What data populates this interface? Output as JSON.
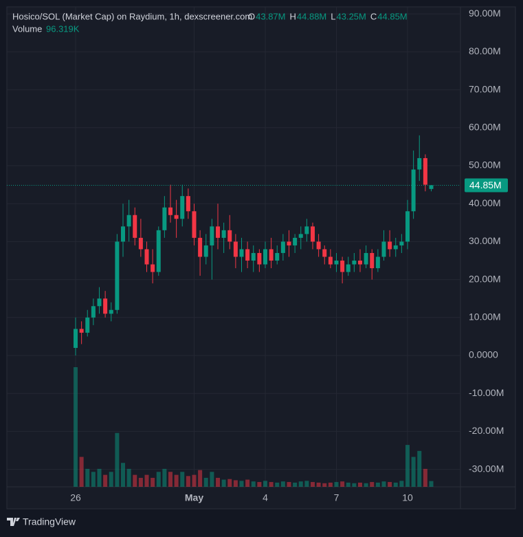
{
  "chart_data": {
    "type": "candlestick",
    "title": "Hosico/SOL (Market Cap) on Raydium, 1h, dexscreener.com",
    "ohlc_keys": [
      "O",
      "H",
      "L",
      "C"
    ],
    "ohlc_labels": [
      "43.87M",
      "44.88M",
      "43.25M",
      "44.85M"
    ],
    "volume_title": "Volume",
    "volume_label": "96.319K",
    "footer": "TradingView",
    "up_color": "#089981",
    "down_color": "#f23645",
    "grid": true,
    "ylim": [
      -34.6,
      91.85
    ],
    "yticks": [
      {
        "value": 90,
        "label": "90.00M"
      },
      {
        "value": 80,
        "label": "80.00M"
      },
      {
        "value": 70,
        "label": "70.00M"
      },
      {
        "value": 60,
        "label": "60.00M"
      },
      {
        "value": 50,
        "label": "50.00M"
      },
      {
        "value": 40,
        "label": "40.00M"
      },
      {
        "value": 30,
        "label": "30.00M"
      },
      {
        "value": 20,
        "label": "20.00M"
      },
      {
        "value": 10,
        "label": "10.00M"
      },
      {
        "value": 0,
        "label": "0.0000"
      },
      {
        "value": -10,
        "label": "-10.00M"
      },
      {
        "value": -20,
        "label": "-20.00M"
      },
      {
        "value": -30,
        "label": "-30.00M"
      }
    ],
    "xticks": [
      {
        "value": 0,
        "label": "26"
      },
      {
        "value": 20,
        "label": "May"
      },
      {
        "value": 32,
        "label": "4"
      },
      {
        "value": 44,
        "label": "7"
      },
      {
        "value": 56,
        "label": "10"
      }
    ],
    "last_price": {
      "value": 44.85,
      "label": "44.85M"
    },
    "open": [
      2,
      7,
      6,
      10,
      13,
      15,
      11,
      12,
      30,
      34,
      37,
      31,
      28,
      24,
      22,
      33,
      39,
      37,
      36,
      42,
      38,
      31,
      26,
      29,
      34,
      31,
      33,
      30,
      26,
      28,
      25,
      27,
      24,
      28,
      25,
      27,
      30,
      29,
      31,
      32,
      34,
      30,
      28,
      26,
      24,
      25,
      22,
      24,
      25,
      24,
      27,
      23,
      26,
      30,
      28,
      29,
      30,
      38,
      49,
      52,
      43.87
    ],
    "high": [
      10,
      9,
      12,
      15,
      18,
      17,
      14,
      32,
      40,
      41,
      39,
      36,
      30,
      28,
      34,
      42,
      45,
      41,
      45,
      44,
      40,
      33,
      32,
      36,
      40,
      35,
      37,
      32,
      31,
      30,
      29,
      28,
      30,
      31,
      29,
      32,
      33,
      32,
      34,
      36,
      35,
      32,
      29,
      28,
      27,
      26,
      26,
      27,
      28,
      29,
      28,
      28,
      33,
      33,
      31,
      32,
      41,
      54,
      58,
      53,
      44.88
    ],
    "low": [
      0,
      3,
      5,
      8,
      11,
      10,
      9,
      11,
      26,
      30,
      29,
      26,
      22,
      19,
      21,
      31,
      35,
      31,
      34,
      36,
      29,
      21,
      24,
      20,
      28,
      27,
      28,
      23,
      22,
      23,
      22,
      22,
      23,
      23,
      24,
      25,
      26,
      27,
      28,
      30,
      28,
      26,
      24,
      23,
      22,
      19,
      21,
      22,
      22,
      23,
      20,
      22,
      25,
      26,
      26,
      27,
      28,
      36,
      46,
      43.25,
      43.25
    ],
    "close": [
      7,
      6,
      10,
      13,
      15,
      11,
      12,
      30,
      34,
      37,
      31,
      28,
      24,
      22,
      33,
      39,
      37,
      36,
      42,
      38,
      31,
      26,
      29,
      34,
      31,
      33,
      30,
      26,
      28,
      25,
      27,
      24,
      28,
      25,
      27,
      30,
      29,
      31,
      32,
      34,
      30,
      28,
      26,
      24,
      25,
      22,
      24,
      25,
      24,
      27,
      23,
      26,
      30,
      28,
      29,
      30,
      38,
      49,
      52,
      45,
      44.85
    ],
    "volume": [
      2000,
      500,
      300,
      250,
      300,
      200,
      250,
      900,
      400,
      300,
      200,
      150,
      200,
      150,
      250,
      300,
      250,
      200,
      250,
      180,
      200,
      280,
      150,
      250,
      150,
      120,
      130,
      110,
      100,
      120,
      90,
      80,
      100,
      80,
      70,
      90,
      80,
      70,
      90,
      100,
      80,
      70,
      60,
      70,
      80,
      90,
      70,
      60,
      70,
      60,
      80,
      70,
      90,
      80,
      70,
      100,
      700,
      500,
      600,
      300,
      96.319
    ]
  }
}
